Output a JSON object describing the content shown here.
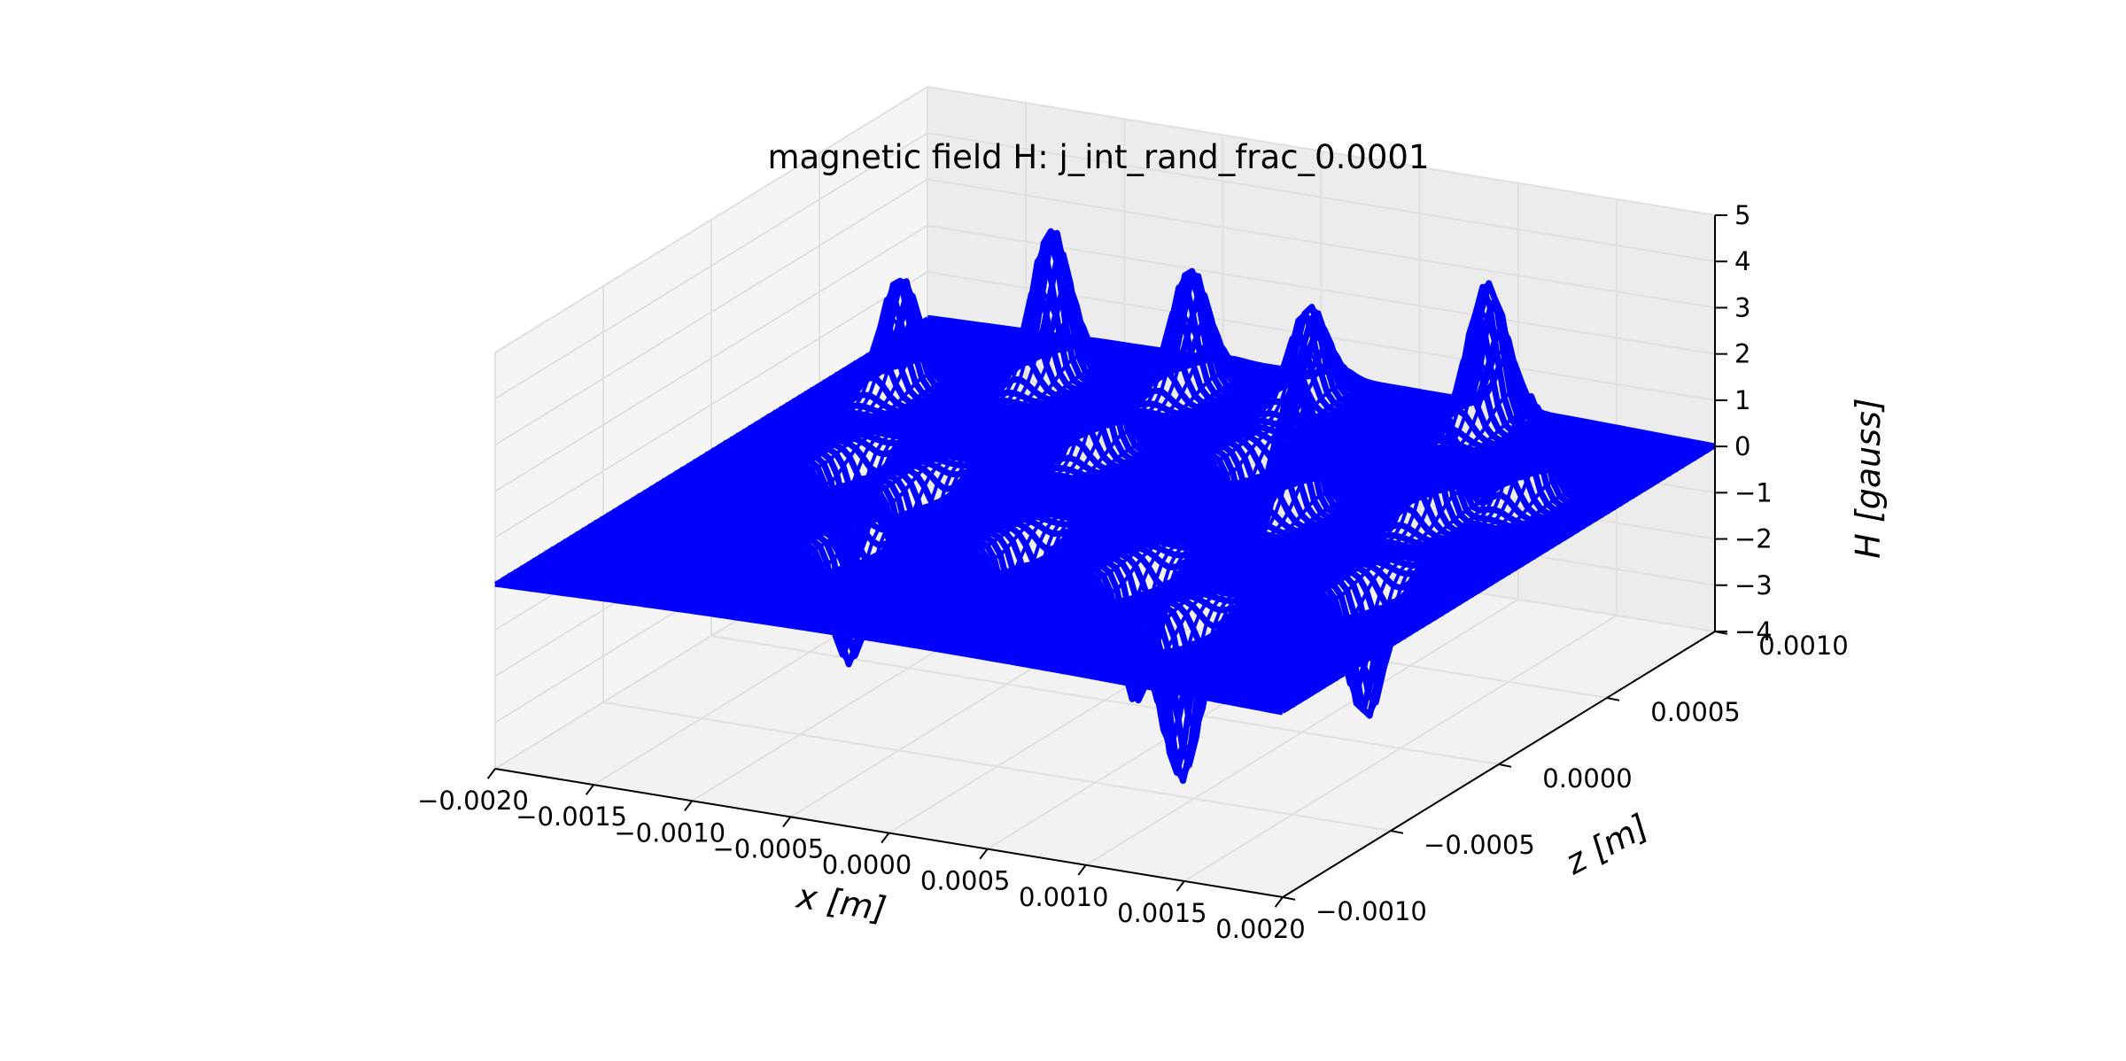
{
  "chart_data": {
    "type": "surface3d",
    "title": "magnetic field H: j_int_rand_frac_0.0001",
    "xlabel": "x [m]",
    "ylabel": "z [m]",
    "zlabel": "H [gauss]",
    "xlim": [
      -0.002,
      0.002
    ],
    "ylim": [
      -0.001,
      0.001
    ],
    "zlim": [
      -4,
      5
    ],
    "x_ticks": [
      "−0.0020",
      "−0.0015",
      "−0.0010",
      "−0.0005",
      "0.0000",
      "0.0005",
      "0.0010",
      "0.0015",
      "0.0020"
    ],
    "y_ticks": [
      "−0.0010",
      "−0.0005",
      "0.0000",
      "0.0005",
      "0.0010"
    ],
    "z_ticks": [
      "−4",
      "−3",
      "−2",
      "−1",
      "0",
      "1",
      "2",
      "3",
      "4",
      "5"
    ],
    "x_tick_values": [
      -0.002,
      -0.0015,
      -0.001,
      -0.0005,
      0,
      0.0005,
      0.001,
      0.0015,
      0.002
    ],
    "y_tick_values": [
      -0.001,
      -0.0005,
      0,
      0.0005,
      0.001
    ],
    "z_tick_values": [
      -4,
      -3,
      -2,
      -1,
      0,
      1,
      2,
      3,
      4,
      5
    ],
    "grid": true,
    "surface_color": "#0000ff",
    "pane_color": "#f2f2f2",
    "sources": [
      {
        "x": -0.00165,
        "z": 0.00055,
        "sign": 1,
        "amp": 2.4
      },
      {
        "x": -0.0011,
        "z": 0.00075,
        "sign": 1,
        "amp": 3.2
      },
      {
        "x": -0.00045,
        "z": 0.0008,
        "sign": 1,
        "amp": 2.6
      },
      {
        "x": 0.0001,
        "z": 0.00085,
        "sign": 1,
        "amp": 2.0
      },
      {
        "x": 0.00095,
        "z": 0.0009,
        "sign": 1,
        "amp": 3.0
      },
      {
        "x": -0.00135,
        "z": 5e-05,
        "sign": -1,
        "amp": 2.4
      },
      {
        "x": -0.0009,
        "z": -5e-05,
        "sign": -1,
        "amp": 2.6
      },
      {
        "x": -0.0004,
        "z": 0.00035,
        "sign": 1,
        "amp": 2.2
      },
      {
        "x": 0.00025,
        "z": 0.00045,
        "sign": -1,
        "amp": 2.0
      },
      {
        "x": 0.00075,
        "z": 0.0002,
        "sign": 1,
        "amp": 2.8
      },
      {
        "x": -0.0008,
        "z": -0.00045,
        "sign": -1,
        "amp": 2.6
      },
      {
        "x": -0.0001,
        "z": -0.0003,
        "sign": -1,
        "amp": 2.4
      },
      {
        "x": 0.00055,
        "z": -0.00035,
        "sign": -1,
        "amp": 2.8
      },
      {
        "x": 0.00135,
        "z": 0.0003,
        "sign": 1,
        "amp": 2.6
      },
      {
        "x": 0.0016,
        "z": 0.0005,
        "sign": 1,
        "amp": 2.2
      },
      {
        "x": 0.00155,
        "z": -0.0002,
        "sign": -1,
        "amp": 2.8
      },
      {
        "x": 0.00105,
        "z": -0.0006,
        "sign": -1,
        "amp": 3.4
      }
    ]
  }
}
